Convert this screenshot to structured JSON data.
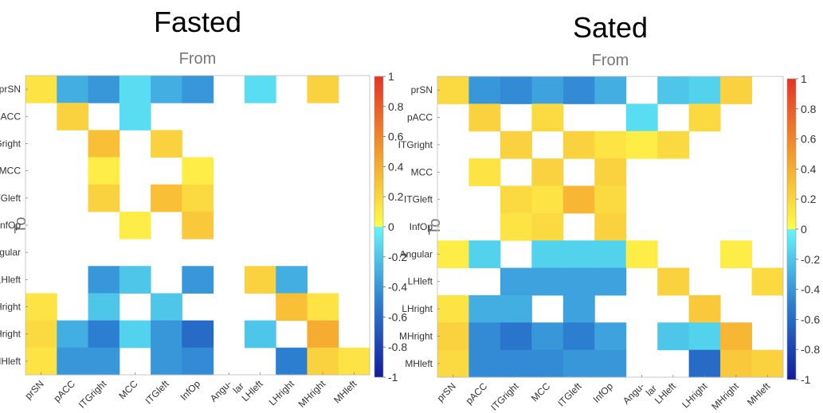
{
  "figure": {
    "colorbar_ticks": [
      "1",
      "0.8",
      "0.6",
      "0.4",
      "0.2",
      "0",
      "-0.2",
      "-0.4",
      "-0.6",
      "-0.8",
      "-1"
    ]
  },
  "colors": {
    "positive_low": "#f8ef3b",
    "positive_high": "#e63324",
    "zero_pos": "#fffe44",
    "zero_neg": "#64f5fb",
    "negative_high": "#121c9d",
    "axis_text": "#333333",
    "label_gray": "#777777"
  },
  "chart_data": [
    {
      "type": "heatmap",
      "title": "Fasted",
      "xlabel": "From",
      "ylabel": "To",
      "x_categories": [
        "prSN",
        "pACC",
        "ITGright",
        "MCC",
        "ITGleft",
        "InfOp",
        "Angu-\nlar",
        "LHleft",
        "LHright",
        "MHright",
        "MHleft"
      ],
      "y_categories": [
        "prSN",
        "pACC",
        "ITGright",
        "MCC",
        "ITGleft",
        "InfOp",
        "Angular",
        "LHleft",
        "LHright",
        "MHright",
        "MHleft"
      ],
      "colorbar_range": [
        -1,
        1
      ],
      "values": [
        [
          0.1,
          -0.3,
          -0.4,
          -0.1,
          -0.3,
          -0.4,
          null,
          -0.1,
          null,
          0.2,
          null
        ],
        [
          null,
          0.2,
          null,
          -0.1,
          null,
          null,
          null,
          null,
          null,
          null,
          null
        ],
        [
          null,
          null,
          0.3,
          null,
          0.2,
          null,
          null,
          null,
          null,
          null,
          null
        ],
        [
          null,
          null,
          0.05,
          null,
          null,
          0.05,
          null,
          null,
          null,
          null,
          null
        ],
        [
          null,
          null,
          0.2,
          null,
          0.3,
          0.15,
          null,
          null,
          null,
          null,
          null
        ],
        [
          null,
          null,
          null,
          0.05,
          null,
          0.25,
          null,
          null,
          null,
          null,
          null
        ],
        [
          null,
          null,
          null,
          null,
          null,
          null,
          null,
          null,
          null,
          null,
          null
        ],
        [
          null,
          null,
          -0.4,
          -0.2,
          null,
          -0.4,
          null,
          0.2,
          -0.3,
          null,
          null
        ],
        [
          0.1,
          null,
          -0.2,
          null,
          -0.2,
          null,
          null,
          null,
          0.3,
          0.1,
          null
        ],
        [
          0.15,
          -0.3,
          -0.5,
          -0.15,
          -0.4,
          -0.6,
          null,
          -0.2,
          null,
          0.4,
          null
        ],
        [
          0.1,
          -0.4,
          -0.4,
          null,
          -0.4,
          -0.45,
          null,
          null,
          -0.5,
          0.2,
          0.1
        ]
      ]
    },
    {
      "type": "heatmap",
      "title": "Sated",
      "xlabel": "From",
      "ylabel": "To",
      "x_categories": [
        "prSN",
        "pACC",
        "ITGright",
        "MCC",
        "ITGleft",
        "InfOp",
        "Angu-\nlar",
        "LHleft",
        "LHright",
        "MHright",
        "MHleft"
      ],
      "y_categories": [
        "prSN",
        "pACC",
        "ITGright",
        "MCC",
        "ITGleft",
        "InfOp",
        "Angular",
        "LHleft",
        "LHright",
        "MHright",
        "MHleft"
      ],
      "colorbar_range": [
        -1,
        1
      ],
      "values": [
        [
          0.15,
          -0.4,
          -0.45,
          -0.35,
          -0.45,
          -0.3,
          null,
          -0.2,
          -0.15,
          0.2,
          null
        ],
        [
          null,
          0.2,
          null,
          0.15,
          null,
          null,
          -0.1,
          null,
          0.15,
          null,
          null
        ],
        [
          null,
          null,
          0.2,
          null,
          0.2,
          0.1,
          0.05,
          0.15,
          null,
          null,
          null
        ],
        [
          null,
          0.1,
          null,
          0.2,
          null,
          0.2,
          null,
          null,
          null,
          null,
          null
        ],
        [
          null,
          null,
          0.15,
          0.1,
          0.35,
          0.15,
          null,
          null,
          null,
          null,
          null
        ],
        [
          null,
          null,
          0.1,
          0.15,
          null,
          0.2,
          null,
          null,
          null,
          null,
          null
        ],
        [
          0.05,
          -0.15,
          null,
          -0.15,
          -0.15,
          -0.15,
          0.05,
          null,
          null,
          0.05,
          null
        ],
        [
          null,
          null,
          -0.35,
          -0.35,
          -0.35,
          -0.35,
          null,
          0.2,
          null,
          null,
          0.15
        ],
        [
          0.1,
          -0.3,
          -0.3,
          null,
          -0.35,
          null,
          null,
          null,
          0.25,
          null,
          null
        ],
        [
          0.2,
          -0.45,
          -0.55,
          -0.4,
          -0.5,
          -0.35,
          null,
          -0.2,
          -0.15,
          0.35,
          null
        ],
        [
          0.15,
          -0.45,
          -0.45,
          -0.45,
          -0.4,
          -0.4,
          null,
          null,
          -0.6,
          0.25,
          0.2
        ]
      ]
    }
  ]
}
